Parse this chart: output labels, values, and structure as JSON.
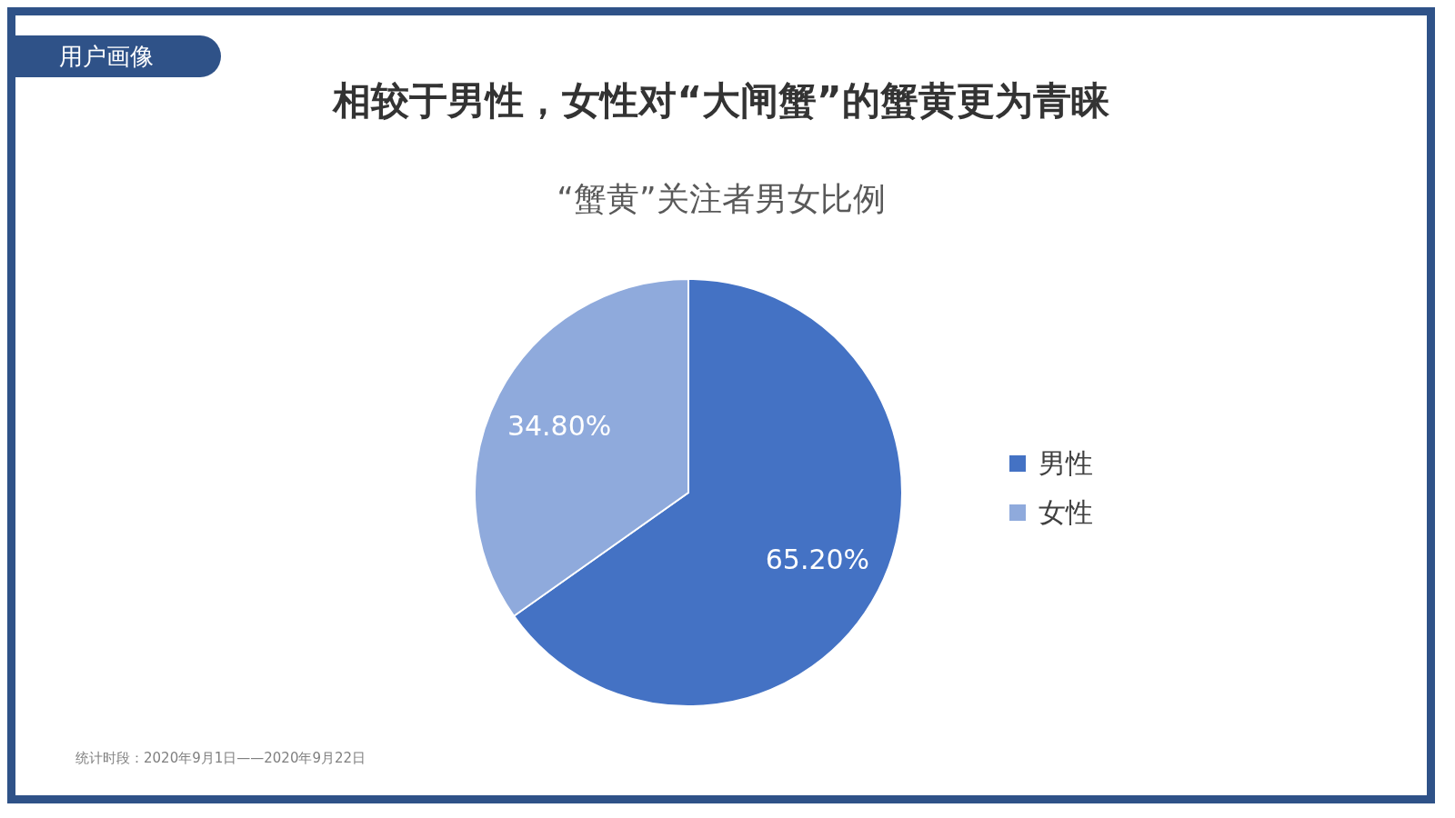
{
  "chart_data": {
    "type": "pie",
    "title": "相较于男性，女性对“大闸蟹”的蟹黄更为青睐",
    "subtitle": "“蟹黄”关注者男女比例",
    "categories": [
      "男性",
      "女性"
    ],
    "values": [
      65.2,
      34.8
    ],
    "colors": [
      "#4472c4",
      "#8faadc"
    ],
    "value_labels": [
      "65.20%",
      "34.80%"
    ],
    "legend": "right",
    "annotations": [
      "用户画像",
      "统计时段：2020年9月1日——2020年9月22日"
    ]
  }
}
